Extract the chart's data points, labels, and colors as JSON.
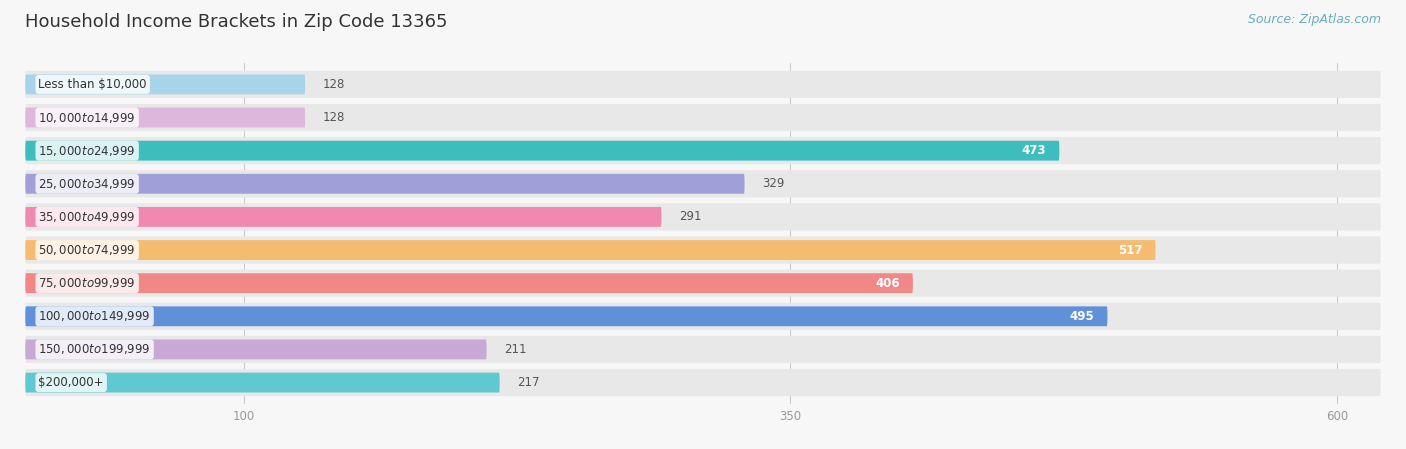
{
  "title": "Household Income Brackets in Zip Code 13365",
  "source": "Source: ZipAtlas.com",
  "categories": [
    "Less than $10,000",
    "$10,000 to $14,999",
    "$15,000 to $24,999",
    "$25,000 to $34,999",
    "$35,000 to $49,999",
    "$50,000 to $74,999",
    "$75,000 to $99,999",
    "$100,000 to $149,999",
    "$150,000 to $199,999",
    "$200,000+"
  ],
  "values": [
    128,
    128,
    473,
    329,
    291,
    517,
    406,
    495,
    211,
    217
  ],
  "bar_colors": [
    "#a8d4ea",
    "#ddb8dc",
    "#3dbdbd",
    "#a0a0d8",
    "#f088b0",
    "#f5bc70",
    "#f08888",
    "#6090d8",
    "#c8a8d4",
    "#60c8d0"
  ],
  "background_color": "#f7f7f7",
  "bar_bg_color": "#e8e8e8",
  "xlim": [
    0,
    620
  ],
  "xticks": [
    100,
    350,
    600
  ],
  "title_fontsize": 13,
  "label_fontsize": 8.5,
  "value_fontsize": 8.5,
  "source_fontsize": 9,
  "source_color": "#6aadbe"
}
